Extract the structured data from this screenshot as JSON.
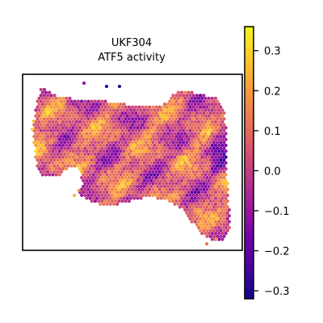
{
  "chart_data": {
    "type": "heatmap",
    "title_lines": [
      "UKF304",
      "ATF5 activity"
    ],
    "colormap": "plasma",
    "colorbar": {
      "vmin": -0.32,
      "vmax": 0.36,
      "ticks": [
        0.3,
        0.2,
        0.1,
        0.0,
        -0.1,
        -0.2,
        -0.3
      ],
      "tick_labels": [
        "0.3",
        "0.2",
        "0.1",
        "0.0",
        "−0.1",
        "−0.2",
        "−0.3"
      ]
    },
    "stops": [
      "#0d0887",
      "#46039f",
      "#7201a8",
      "#9c179e",
      "#bd3786",
      "#d8576b",
      "#ed7953",
      "#fb9f3a",
      "#fdca26",
      "#f0f921"
    ],
    "axes": "hidden",
    "frame": true
  }
}
